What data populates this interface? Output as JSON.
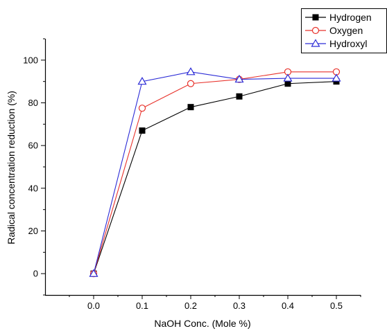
{
  "chart_data": {
    "type": "line",
    "title": "",
    "xlabel": "NaOH Conc. (Mole %)",
    "ylabel": "Radical concentration reduction (%)",
    "x": [
      0.0,
      0.1,
      0.2,
      0.3,
      0.4,
      0.5
    ],
    "x_tick_labels": [
      "0.0",
      "0.1",
      "0.2",
      "0.3",
      "0.4",
      "0.5"
    ],
    "y_tick_labels": [
      "0",
      "20",
      "40",
      "60",
      "80",
      "100"
    ],
    "xlim": [
      -0.1,
      0.55
    ],
    "ylim": [
      -10,
      110
    ],
    "legend_position": "top-right",
    "grid": false,
    "series": [
      {
        "name": "Hydrogen",
        "color": "#000000",
        "marker": "filled-square",
        "values": [
          0,
          67,
          78,
          83,
          89,
          90
        ]
      },
      {
        "name": "Oxygen",
        "color": "#e8312a",
        "marker": "open-circle",
        "values": [
          0,
          77.5,
          89,
          91,
          94.5,
          94.5
        ]
      },
      {
        "name": "Hydroxyl",
        "color": "#2b2bd6",
        "marker": "open-triangle",
        "values": [
          0,
          90,
          94.5,
          91,
          91.5,
          91.5
        ]
      }
    ]
  }
}
